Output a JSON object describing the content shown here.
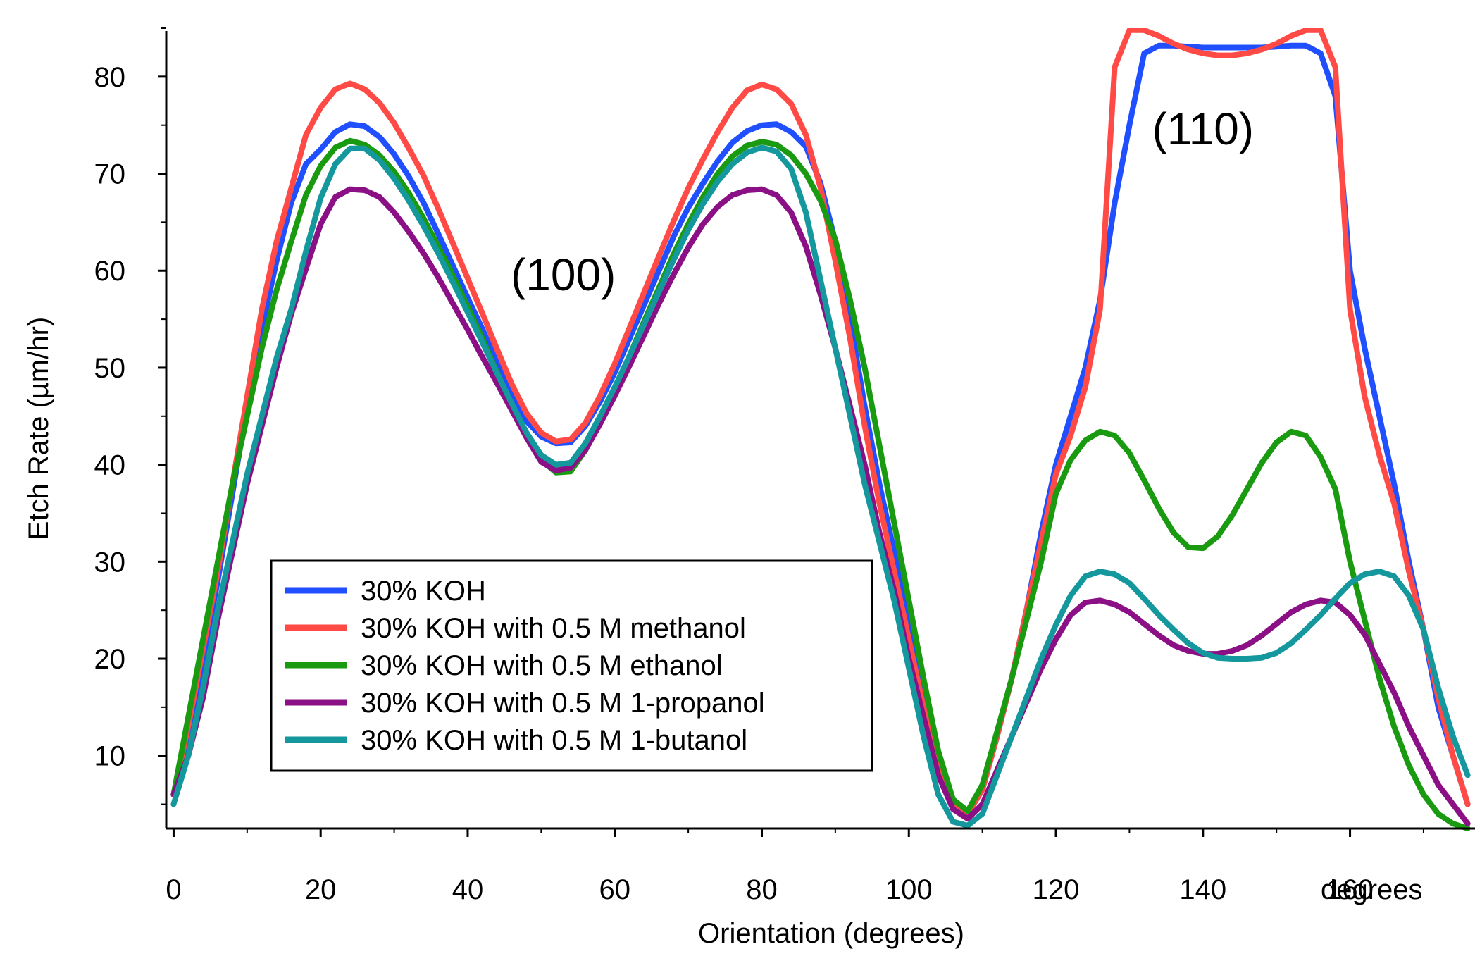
{
  "chart_data": {
    "type": "line",
    "title": "",
    "xlabel": "Orientation (degrees)",
    "ylabel": "Etch Rate (µm/hr)",
    "x_unit_label": "degrees",
    "xlim": [
      -1,
      177
    ],
    "ylim": [
      2.5,
      85
    ],
    "x_ticks": [
      0,
      20,
      40,
      60,
      80,
      100,
      120,
      140,
      160
    ],
    "x_tick_labels": [
      "0",
      "20",
      "40",
      "60",
      "80",
      "100",
      "120",
      "140",
      "160"
    ],
    "y_ticks": [
      10,
      20,
      30,
      40,
      50,
      60,
      70,
      80
    ],
    "y_tick_labels": [
      "10",
      "20",
      "30",
      "40",
      "50",
      "60",
      "70",
      "80"
    ],
    "grid": false,
    "legend_position": "lower-left",
    "annotations": [
      {
        "text": "(100)",
        "x": 53,
        "y": 58
      },
      {
        "text": "(110)",
        "x": 140,
        "y": 73
      }
    ],
    "x": [
      0,
      2,
      4,
      6,
      8,
      10,
      12,
      14,
      16,
      18,
      20,
      22,
      24,
      26,
      28,
      30,
      32,
      34,
      36,
      38,
      40,
      42,
      44,
      46,
      48,
      50,
      52,
      54,
      56,
      58,
      60,
      62,
      64,
      66,
      68,
      70,
      72,
      74,
      76,
      78,
      80,
      82,
      84,
      86,
      88,
      90,
      92,
      94,
      96,
      98,
      100,
      102,
      104,
      106,
      108,
      110,
      112,
      114,
      116,
      118,
      120,
      122,
      124,
      126,
      128,
      130,
      132,
      134,
      136,
      138,
      140,
      142,
      144,
      146,
      148,
      150,
      152,
      154,
      156,
      158,
      160,
      162,
      164,
      166,
      168,
      170,
      172,
      174,
      176
    ],
    "series": [
      {
        "name": "30% KOH",
        "color": "#1f4fff",
        "values": [
          6,
          12,
          20,
          28,
          37,
          46,
          54,
          61,
          67,
          71,
          72.5,
          74.3,
          75.1,
          74.9,
          73.8,
          72,
          69.7,
          67,
          63.8,
          60.5,
          57.2,
          54,
          50.5,
          47.3,
          44.5,
          42.9,
          42.2,
          42.3,
          44,
          46.5,
          49.5,
          53,
          56.5,
          60,
          63.5,
          66.5,
          69,
          71.3,
          73.2,
          74.4,
          75,
          75.1,
          74.3,
          72.8,
          69,
          63,
          55,
          46,
          38,
          31,
          24,
          16,
          9,
          5.5,
          4,
          6.5,
          12,
          18,
          25,
          33,
          40,
          45,
          50,
          57,
          67,
          75,
          82.4,
          83.2,
          83.2,
          83.1,
          83,
          83,
          83,
          83,
          83,
          83.1,
          83.2,
          83.2,
          82.4,
          78,
          60,
          52,
          45,
          38,
          30,
          23,
          15,
          10,
          5
        ]
      },
      {
        "name": "30% KOH with 0.5 M methanol",
        "color": "#ff4a45",
        "values": [
          6,
          13,
          21,
          29,
          38,
          47,
          56,
          63,
          68.5,
          74,
          76.8,
          78.7,
          79.3,
          78.7,
          77.3,
          75.2,
          72.6,
          69.8,
          66.4,
          62.8,
          59.2,
          55.6,
          51.9,
          48.3,
          45.3,
          43.3,
          42.4,
          42.6,
          44.3,
          47.1,
          50.4,
          54.1,
          57.8,
          61.5,
          65.1,
          68.5,
          71.5,
          74.3,
          76.8,
          78.6,
          79.2,
          78.7,
          77.2,
          74,
          68.5,
          61,
          53,
          44,
          36,
          29,
          22,
          15,
          8.5,
          4.8,
          4,
          6.5,
          12,
          18,
          25,
          32,
          39,
          43,
          48,
          56,
          81,
          84.8,
          84.8,
          84.2,
          83.4,
          82.8,
          82.4,
          82.2,
          82.2,
          82.4,
          82.8,
          83.4,
          84.2,
          84.8,
          84.8,
          81,
          56,
          47,
          41,
          36,
          29,
          23,
          16,
          10,
          5
        ]
      },
      {
        "name": "30% KOH with 0.5 M ethanol",
        "color": "#1a9a10",
        "values": [
          6,
          14,
          22,
          30,
          38,
          45,
          52,
          58,
          63,
          67.8,
          70.8,
          72.7,
          73.4,
          73,
          71.9,
          70.2,
          68,
          65.4,
          62.5,
          59.5,
          56.3,
          53,
          49.5,
          46.2,
          43.2,
          40.5,
          39.2,
          39.3,
          41.5,
          44.5,
          47.8,
          51.2,
          54.8,
          58.2,
          61.7,
          64.8,
          67.6,
          70,
          71.8,
          72.9,
          73.3,
          73,
          71.9,
          70,
          67.2,
          63.2,
          57,
          50,
          42,
          34,
          26,
          18,
          10.5,
          5.5,
          4.3,
          7,
          12.5,
          18,
          24,
          30,
          37,
          40.5,
          42.5,
          43.4,
          43,
          41.2,
          38.4,
          35.5,
          33,
          31.5,
          31.4,
          32.6,
          34.8,
          37.5,
          40.2,
          42.3,
          43.4,
          43,
          40.8,
          37.5,
          30,
          24,
          18,
          13,
          9,
          6,
          4,
          3,
          2.5
        ]
      },
      {
        "name": "30% KOH with 0.5 M 1-propanol",
        "color": "#8b1085",
        "values": [
          6,
          10,
          16,
          24,
          31,
          38,
          44,
          50,
          55.5,
          60.2,
          64.8,
          67.6,
          68.4,
          68.3,
          67.6,
          66,
          64,
          61.8,
          59.3,
          56.6,
          53.9,
          51.1,
          48.4,
          45.6,
          42.8,
          40.3,
          39.4,
          39.7,
          41.5,
          44.2,
          47.1,
          50.2,
          53.4,
          56.6,
          59.6,
          62.4,
          64.8,
          66.6,
          67.8,
          68.3,
          68.4,
          67.8,
          66,
          62.5,
          57.5,
          52,
          46,
          40,
          33,
          27,
          20,
          14,
          8,
          4.5,
          3.5,
          5,
          8.5,
          12,
          15.5,
          19,
          22,
          24.5,
          25.8,
          26,
          25.6,
          24.8,
          23.6,
          22.4,
          21.4,
          20.8,
          20.5,
          20.5,
          20.8,
          21.4,
          22.4,
          23.6,
          24.8,
          25.6,
          26,
          25.8,
          24.5,
          22.5,
          19.5,
          16.5,
          13,
          10,
          7,
          5,
          3
        ]
      },
      {
        "name": "30% KOH with 0.5 M 1-butanol",
        "color": "#14989e",
        "values": [
          5,
          10,
          17,
          25,
          32,
          39,
          45,
          51,
          56,
          62,
          67.5,
          71,
          72.6,
          72.6,
          71.4,
          69.5,
          67.2,
          64.6,
          61.8,
          58.8,
          55.7,
          52.6,
          49.4,
          46.3,
          43.3,
          41,
          40,
          40.2,
          42.2,
          45,
          48,
          51.2,
          54.5,
          57.8,
          61.1,
          64.2,
          66.9,
          69.2,
          71,
          72.2,
          72.7,
          72.3,
          70.5,
          66,
          59,
          52,
          45,
          38,
          32,
          26,
          19,
          12,
          6,
          3.2,
          2.8,
          4,
          8,
          12,
          16,
          20,
          23.5,
          26.5,
          28.5,
          29,
          28.7,
          27.8,
          26.2,
          24.5,
          23,
          21.6,
          20.6,
          20.1,
          20,
          20,
          20.1,
          20.6,
          21.6,
          23,
          24.5,
          26.2,
          27.8,
          28.7,
          29,
          28.5,
          26.5,
          23,
          17,
          12,
          8
        ]
      }
    ]
  }
}
